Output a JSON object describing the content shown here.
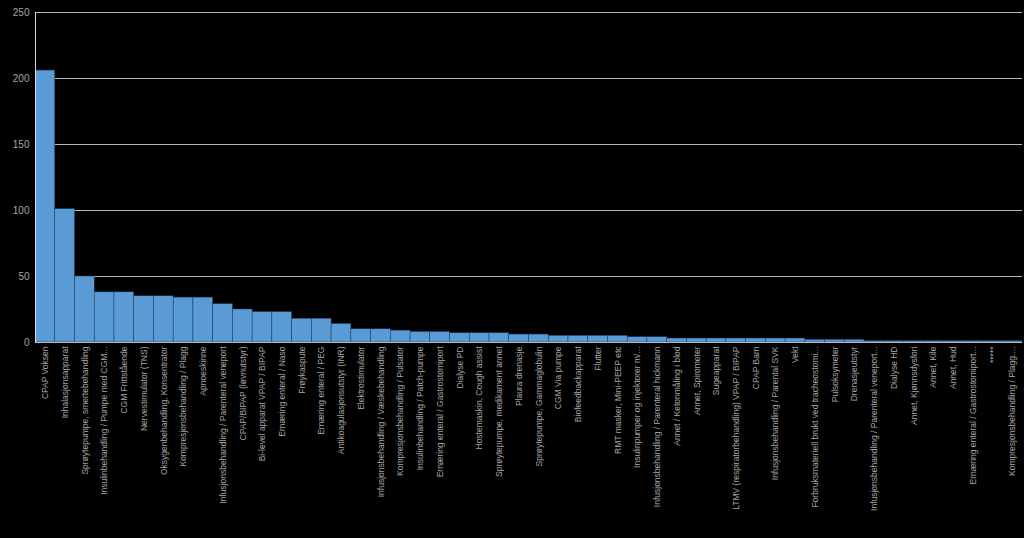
{
  "chart_data": {
    "type": "bar",
    "categories": [
      "CPAP Voksen",
      "Inhalasjonsapparat",
      "Sprøytepumpe, smertebehandling",
      "Insulinbehandling / Pumpe med CGM...",
      "CGM Frittstående",
      "Nervestimulator (TNS)",
      "Oksygenbehandling, Konsentrator",
      "Kompresjonsbehandling / Plagg",
      "Apnoeskinne",
      "Infusjonsbehandling / Parenteral veneport",
      "CPAP/BIPAP (løvnutstyr)",
      "Bi-level apparat VPAP / BIPAP",
      "Ernæring enteral / Naso",
      "Frøykaspute",
      "Ernæring enteral / PEG",
      "Antikoagulasjonsutstyr (INR)",
      "Elektrostimulator",
      "Infusjonsbehandling / Væskebehandling",
      "Kompresjonsbehandling / Pulsator",
      "Insulinbehandling / Patch-pumpe",
      "Ernæring enteral / Gastrostomiport",
      "Dialyse PD",
      "Hostemaskin, Cough assist",
      "Sprøytepumpe, medikament annet",
      "Plaura drenasje",
      "Sprøytepumpe, Gammaglobulin",
      "CGM Via pumpe",
      "Biofeedbackapparat",
      "Flutter",
      "RMT masker, Mini-PEEP etc",
      "Insulinpumper og injektorer m/...",
      "Infusjonsbehandling / Parenteral hickmann",
      "Annet / Ketonmåling i blod",
      "Annet, Spirometer",
      "Sugeapparat",
      "LTMV (respiratorbehandling) VPAP / BIPAP",
      "CPAP Barn",
      "Infusjonsbehandling / Parental SVK",
      "Vekt",
      "Forbruksmateriell brukt ved tracheostomi...",
      "Pulsoksymeter",
      "Drenasjeutstyr",
      "Infusjonsbehandling / Parenteral veneport...",
      "Dialyse HD",
      "Annet, Kjønnsdysfori",
      "Annet, Kile",
      "Annet, Hud",
      "Ernæring enteral / Gastrostomiport...",
      "*****",
      "Kompresjonsbehandling / Plagg...."
    ],
    "values": [
      206,
      101,
      50,
      38,
      38,
      35,
      35,
      34,
      34,
      29,
      25,
      23,
      23,
      18,
      18,
      14,
      10,
      10,
      9,
      8,
      8,
      7,
      7,
      7,
      6,
      6,
      5,
      5,
      5,
      5,
      4,
      4,
      3,
      3,
      3,
      3,
      3,
      3,
      3,
      2,
      2,
      2,
      1,
      1,
      1,
      1,
      1,
      1,
      1,
      1
    ],
    "color": "#5b9bd5",
    "ylim": [
      0,
      250
    ],
    "yticks": [
      0,
      50,
      100,
      150,
      200,
      250
    ],
    "grid": true
  }
}
